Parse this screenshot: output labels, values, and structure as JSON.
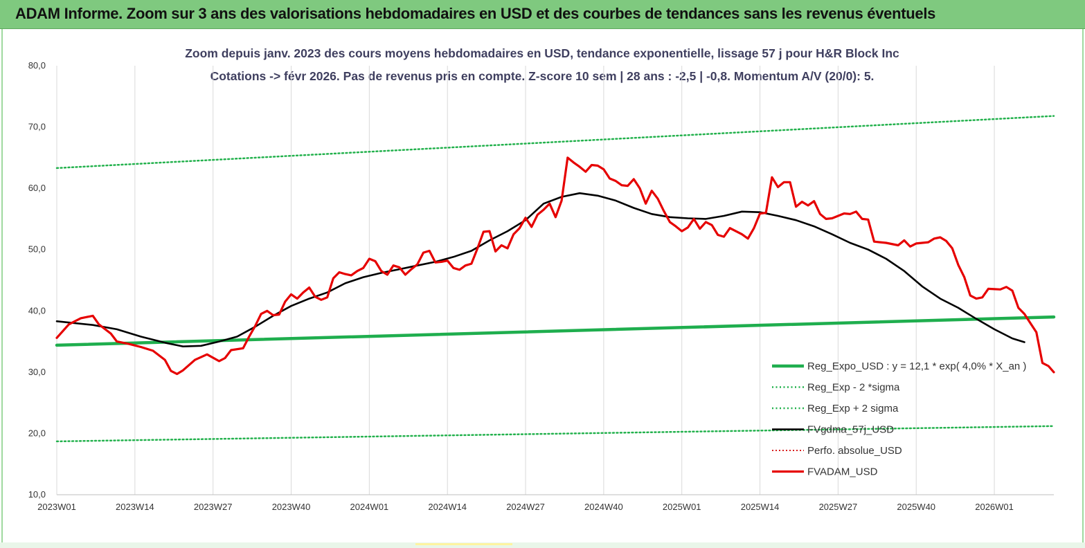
{
  "banner": {
    "title": "ADAM Informe. Zoom sur 3 ans des valorisations hebdomadaires en USD et des courbes de tendances sans les revenus éventuels"
  },
  "colors": {
    "banner_bg": "#7fc97f",
    "reg_expo": "#1fae4e",
    "sigma_bands": "#22b14c",
    "fvgdma": "#000000",
    "perfo_absolue": "#d81e1e",
    "fvadam": "#e60000"
  },
  "chart_data": {
    "type": "line",
    "title_line1": "Zoom depuis janv. 2023 des cours moyens hebdomadaires en USD, tendance exponentielle, lissage 57 j pour H&R Block Inc",
    "title_line2": "Cotations -> févr 2026.  Pas de revenus pris en compte. Z-score 10 sem | 28 ans : -2,5 | -0,8. Momentum A/V (20/0): 5.",
    "ylim": [
      10,
      80
    ],
    "grid": "vertical",
    "legend_position": "bottom-right",
    "yticks": [
      "10,0",
      "20,0",
      "30,0",
      "40,0",
      "50,0",
      "60,0",
      "70,0",
      "80,0"
    ],
    "xticks": [
      "2023W01",
      "2023W14",
      "2023W27",
      "2023W40",
      "2024W01",
      "2024W14",
      "2024W27",
      "2024W40",
      "2025W01",
      "2025W14",
      "2025W27",
      "2025W40",
      "2026W01"
    ],
    "x_range_weeks": [
      0,
      165.9
    ],
    "series": [
      {
        "name": "Reg_Expo_USD : y = 12,1 * exp( 4,0% *  X_an )",
        "style": "solid-thick",
        "values": [
          [
            0,
            34.4
          ],
          [
            165.9,
            39.0
          ]
        ]
      },
      {
        "name": "Reg_Exp - 2 *sigma",
        "style": "dotted",
        "values": [
          [
            0,
            18.7
          ],
          [
            165.9,
            21.2
          ]
        ]
      },
      {
        "name": "Reg_Exp + 2 sigma",
        "style": "dotted",
        "values": [
          [
            0,
            63.3
          ],
          [
            165.9,
            71.8
          ]
        ]
      },
      {
        "name": "FVgdma_57j_USD",
        "style": "solid",
        "values": [
          [
            0,
            38.3
          ],
          [
            6,
            37.7
          ],
          [
            10,
            37.0
          ],
          [
            14,
            35.8
          ],
          [
            18,
            34.8
          ],
          [
            21,
            34.2
          ],
          [
            24,
            34.3
          ],
          [
            27,
            35.0
          ],
          [
            30,
            35.8
          ],
          [
            33,
            37.4
          ],
          [
            36,
            39.2
          ],
          [
            39,
            40.8
          ],
          [
            42,
            42.0
          ],
          [
            45,
            43.0
          ],
          [
            48,
            44.5
          ],
          [
            51,
            45.5
          ],
          [
            54,
            46.2
          ],
          [
            57,
            46.8
          ],
          [
            60,
            47.4
          ],
          [
            63,
            48.0
          ],
          [
            66,
            48.8
          ],
          [
            69,
            49.8
          ],
          [
            72,
            51.5
          ],
          [
            75,
            53.0
          ],
          [
            78,
            54.8
          ],
          [
            81,
            57.5
          ],
          [
            84,
            58.6
          ],
          [
            87,
            59.2
          ],
          [
            90,
            58.8
          ],
          [
            93,
            58.0
          ],
          [
            96,
            56.8
          ],
          [
            99,
            55.8
          ],
          [
            102,
            55.3
          ],
          [
            105,
            55.1
          ],
          [
            108,
            55.0
          ],
          [
            111,
            55.5
          ],
          [
            114,
            56.2
          ],
          [
            117,
            56.1
          ],
          [
            120,
            55.5
          ],
          [
            123,
            54.8
          ],
          [
            126,
            53.8
          ],
          [
            129,
            52.5
          ],
          [
            132,
            51.1
          ],
          [
            135,
            50.0
          ],
          [
            138,
            48.5
          ],
          [
            141,
            46.5
          ],
          [
            144,
            44.0
          ],
          [
            147,
            42.0
          ],
          [
            150,
            40.5
          ],
          [
            153,
            38.7
          ],
          [
            156,
            37.0
          ],
          [
            159,
            35.5
          ],
          [
            161,
            34.9
          ]
        ]
      },
      {
        "name": "Perfo. absolue_USD",
        "style": "dotted",
        "values": []
      },
      {
        "name": "FVADAM_USD",
        "style": "solid-thick",
        "values": [
          [
            0,
            35.6
          ],
          [
            2,
            37.8
          ],
          [
            4,
            38.8
          ],
          [
            6,
            39.2
          ],
          [
            7,
            37.8
          ],
          [
            9,
            36.3
          ],
          [
            10,
            35.0
          ],
          [
            12,
            34.6
          ],
          [
            14,
            34.1
          ],
          [
            16,
            33.5
          ],
          [
            18,
            32.0
          ],
          [
            19,
            30.2
          ],
          [
            20,
            29.7
          ],
          [
            21,
            30.3
          ],
          [
            23,
            32.0
          ],
          [
            25,
            32.9
          ],
          [
            27,
            31.8
          ],
          [
            28,
            32.3
          ],
          [
            29,
            33.6
          ],
          [
            31,
            33.9
          ],
          [
            32,
            35.8
          ],
          [
            33,
            37.5
          ],
          [
            34,
            39.5
          ],
          [
            35,
            40.0
          ],
          [
            36,
            39.3
          ],
          [
            37,
            39.4
          ],
          [
            38,
            41.5
          ],
          [
            39,
            42.7
          ],
          [
            40,
            42.0
          ],
          [
            41,
            43.0
          ],
          [
            42,
            43.8
          ],
          [
            43,
            42.3
          ],
          [
            44,
            41.8
          ],
          [
            45,
            42.2
          ],
          [
            46,
            45.3
          ],
          [
            47,
            46.3
          ],
          [
            48,
            46.0
          ],
          [
            49,
            45.8
          ],
          [
            50,
            46.5
          ],
          [
            51,
            47.0
          ],
          [
            52,
            48.5
          ],
          [
            53,
            48.1
          ],
          [
            54,
            46.5
          ],
          [
            55,
            45.9
          ],
          [
            56,
            47.4
          ],
          [
            57,
            47.1
          ],
          [
            58,
            45.9
          ],
          [
            59,
            46.8
          ],
          [
            60,
            47.6
          ],
          [
            61,
            49.5
          ],
          [
            62,
            49.8
          ],
          [
            63,
            47.9
          ],
          [
            64,
            48.0
          ],
          [
            65,
            48.2
          ],
          [
            66,
            47.0
          ],
          [
            67,
            46.7
          ],
          [
            68,
            47.4
          ],
          [
            69,
            47.7
          ],
          [
            70,
            50.2
          ],
          [
            71,
            52.9
          ],
          [
            72,
            53.0
          ],
          [
            73,
            49.7
          ],
          [
            74,
            50.7
          ],
          [
            75,
            50.2
          ],
          [
            76,
            52.5
          ],
          [
            77,
            53.5
          ],
          [
            78,
            55.2
          ],
          [
            79,
            53.7
          ],
          [
            80,
            55.7
          ],
          [
            81,
            56.5
          ],
          [
            82,
            57.5
          ],
          [
            83,
            55.3
          ],
          [
            84,
            58.0
          ],
          [
            85,
            65.0
          ],
          [
            86,
            64.2
          ],
          [
            87,
            63.5
          ],
          [
            88,
            62.7
          ],
          [
            89,
            63.8
          ],
          [
            90,
            63.7
          ],
          [
            91,
            63.1
          ],
          [
            92,
            61.6
          ],
          [
            93,
            61.2
          ],
          [
            94,
            60.5
          ],
          [
            95,
            60.4
          ],
          [
            96,
            61.5
          ],
          [
            97,
            60.0
          ],
          [
            98,
            57.5
          ],
          [
            99,
            59.6
          ],
          [
            100,
            58.3
          ],
          [
            101,
            56.3
          ],
          [
            102,
            54.5
          ],
          [
            103,
            53.8
          ],
          [
            104,
            53.0
          ],
          [
            105,
            53.6
          ],
          [
            106,
            55.0
          ],
          [
            107,
            53.4
          ],
          [
            108,
            54.5
          ],
          [
            109,
            54.0
          ],
          [
            110,
            52.4
          ],
          [
            111,
            52.1
          ],
          [
            112,
            53.5
          ],
          [
            114,
            52.5
          ],
          [
            115,
            51.8
          ],
          [
            116,
            53.5
          ],
          [
            117,
            55.9
          ],
          [
            118,
            56.0
          ],
          [
            119,
            61.8
          ],
          [
            120,
            60.2
          ],
          [
            121,
            61.0
          ],
          [
            122,
            61.0
          ],
          [
            123,
            57.0
          ],
          [
            124,
            57.8
          ],
          [
            125,
            57.2
          ],
          [
            126,
            57.9
          ],
          [
            127,
            55.8
          ],
          [
            128,
            55.0
          ],
          [
            129,
            55.1
          ],
          [
            131,
            55.9
          ],
          [
            132,
            55.8
          ],
          [
            133,
            56.2
          ],
          [
            134,
            55.0
          ],
          [
            135,
            54.9
          ],
          [
            136,
            51.3
          ],
          [
            138,
            51.1
          ],
          [
            140,
            50.7
          ],
          [
            141,
            51.5
          ],
          [
            142,
            50.5
          ],
          [
            143,
            51.0
          ],
          [
            145,
            51.2
          ],
          [
            146,
            51.8
          ],
          [
            147,
            52.0
          ],
          [
            148,
            51.4
          ],
          [
            149,
            50.2
          ],
          [
            150,
            47.5
          ],
          [
            151,
            45.5
          ],
          [
            152,
            42.5
          ],
          [
            153,
            42.0
          ],
          [
            154,
            42.2
          ],
          [
            155,
            43.6
          ],
          [
            157,
            43.5
          ],
          [
            158,
            43.9
          ],
          [
            159,
            43.3
          ],
          [
            160,
            40.5
          ],
          [
            161,
            39.5
          ],
          [
            162,
            38.0
          ],
          [
            163,
            36.5
          ],
          [
            164,
            31.5
          ],
          [
            165,
            31.0
          ],
          [
            165.9,
            30.0
          ]
        ]
      }
    ]
  }
}
